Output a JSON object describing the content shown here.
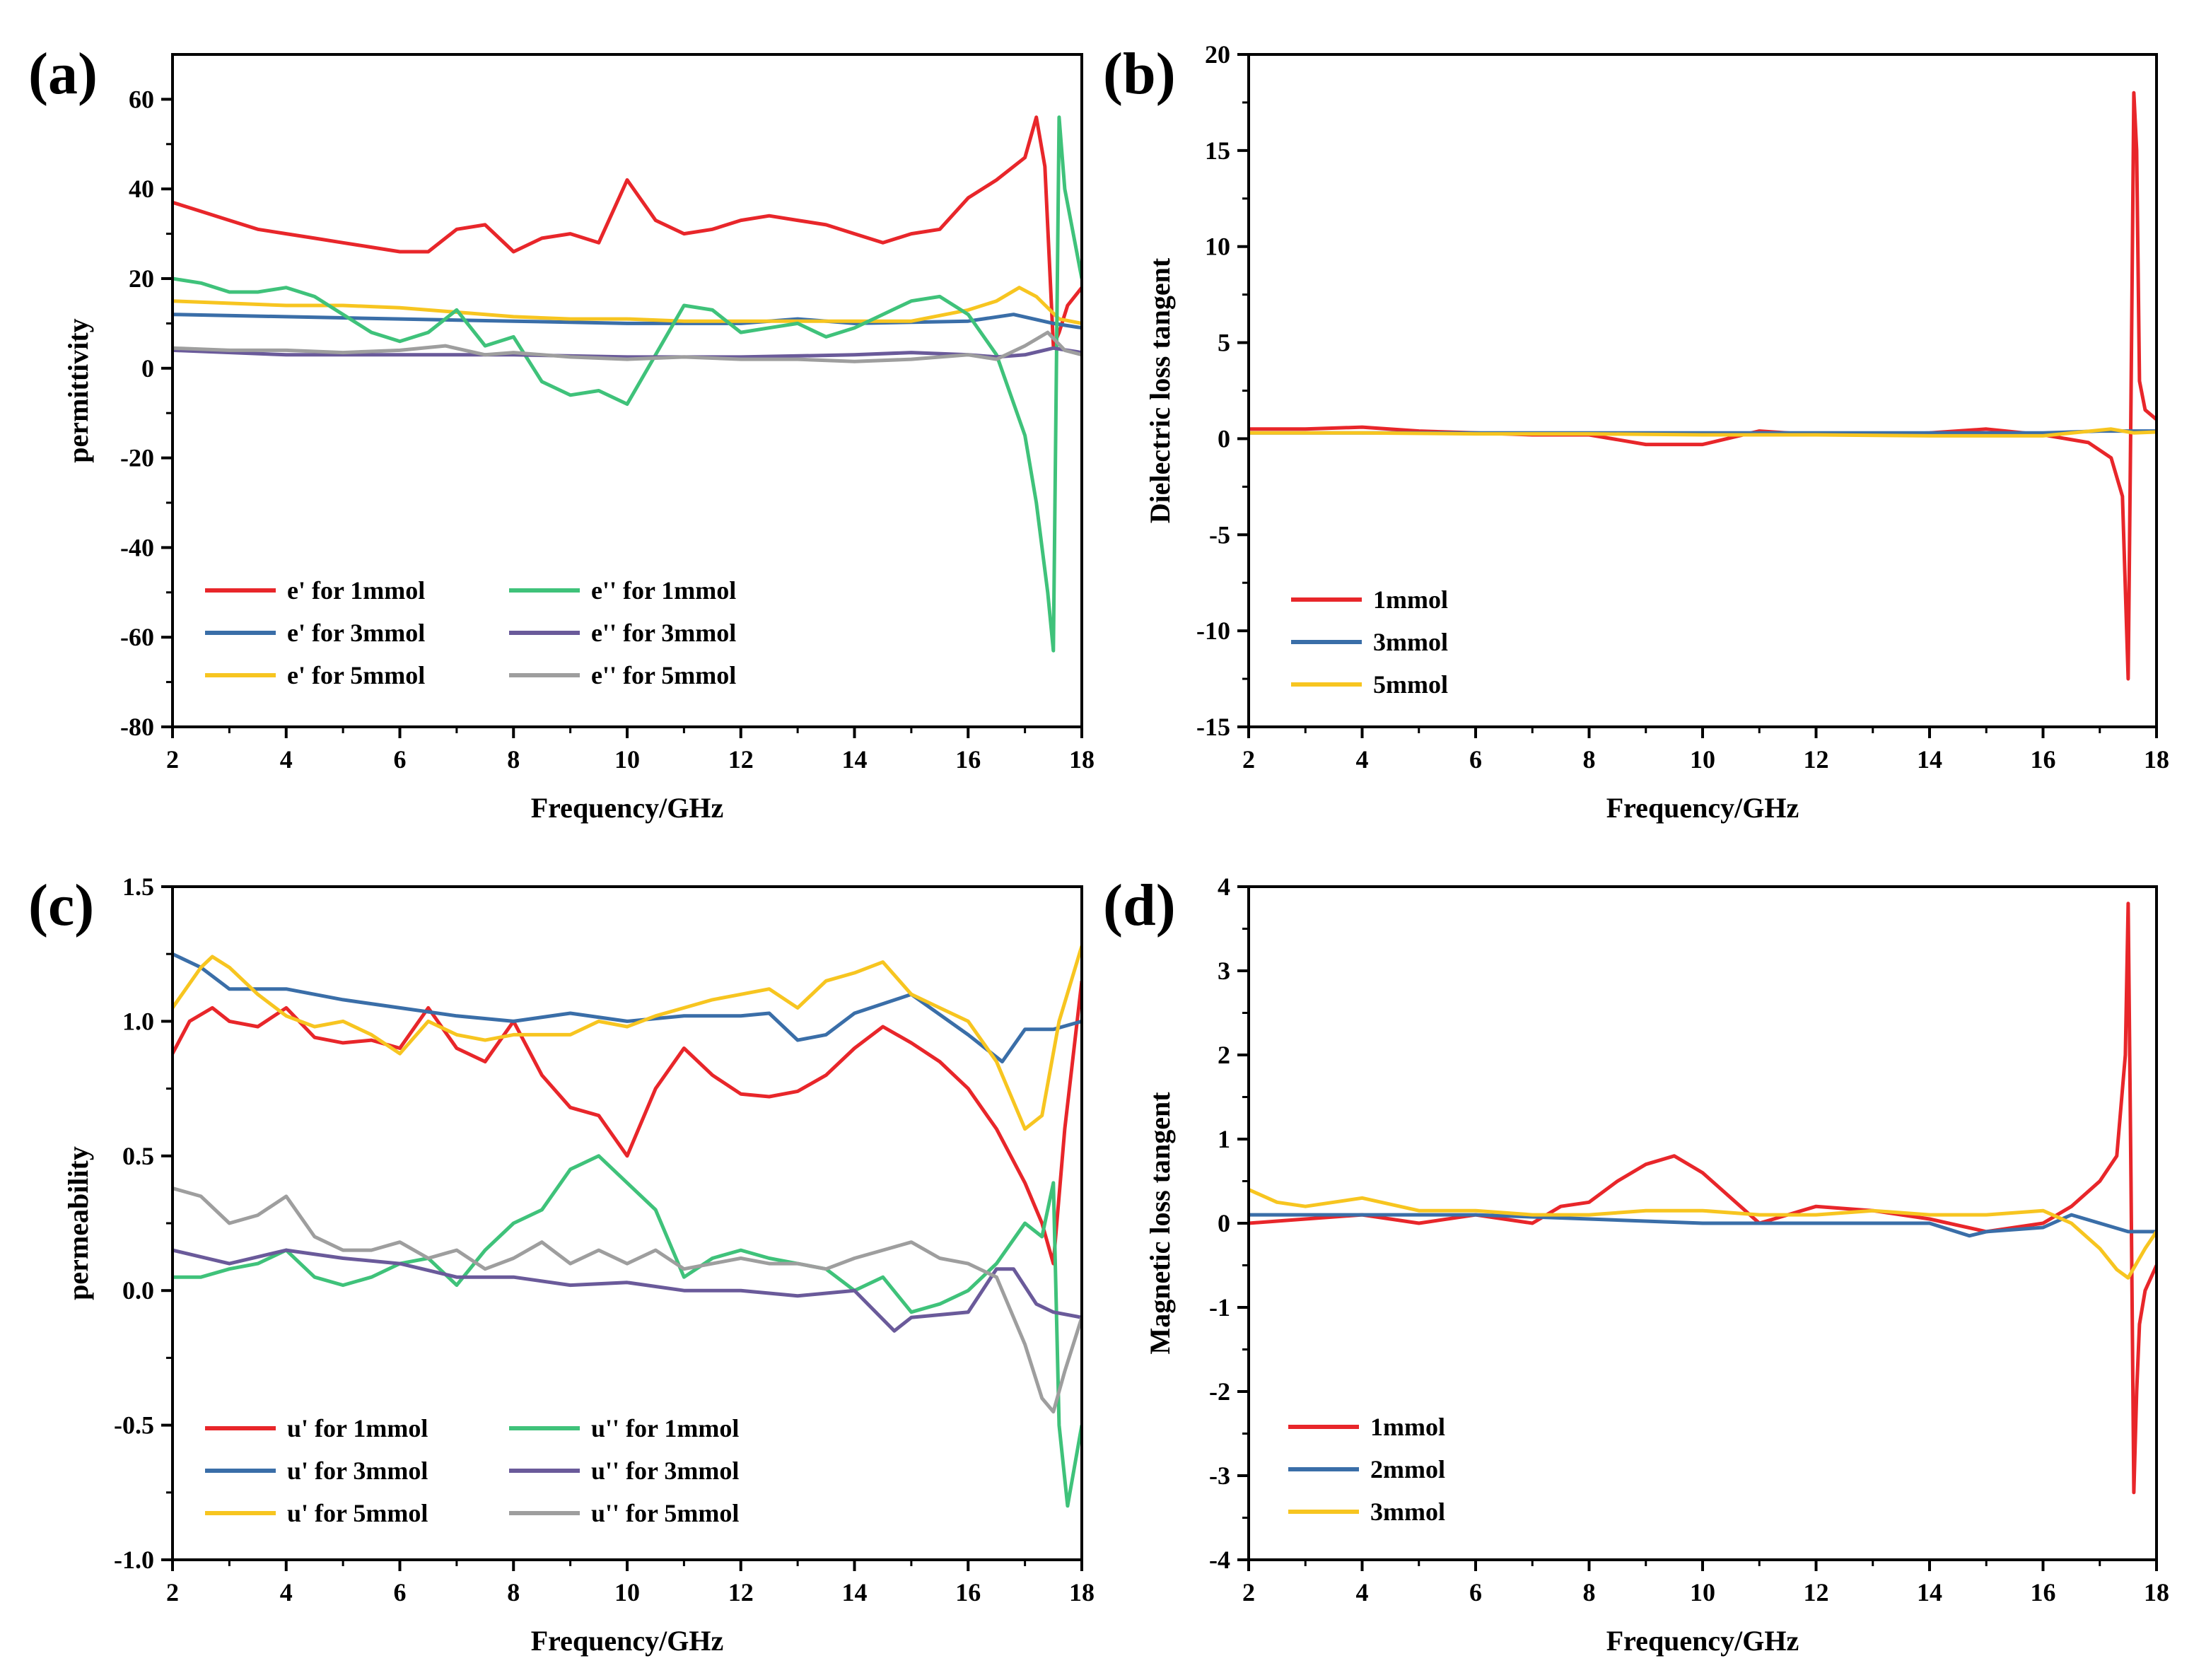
{
  "figure": {
    "description_free": true
  },
  "chart_data": [
    {
      "panel": "(a)",
      "type": "line",
      "xlabel": "Frequency/GHz",
      "ylabel": "permittivity",
      "xlim": [
        2,
        18
      ],
      "ylim": [
        -80,
        70
      ],
      "xticks": [
        2,
        4,
        6,
        8,
        10,
        12,
        14,
        16,
        18
      ],
      "yticks": [
        -80,
        -60,
        -40,
        -20,
        0,
        20,
        40,
        60
      ],
      "legend_position": "bottom-left",
      "legend_columns": 2,
      "series": [
        {
          "name": "e'  for 1mmol",
          "color": "#e8262a",
          "x": [
            2,
            2.5,
            3,
            3.5,
            4,
            4.5,
            5,
            5.5,
            6,
            6.5,
            7,
            7.5,
            8,
            8.5,
            9,
            9.5,
            10,
            10.5,
            11,
            11.5,
            12,
            12.5,
            13,
            13.5,
            14,
            14.5,
            15,
            15.5,
            16,
            16.5,
            17,
            17.2,
            17.35,
            17.5,
            17.6,
            17.75,
            18
          ],
          "y": [
            37,
            35,
            33,
            31,
            30,
            29,
            28,
            27,
            26,
            26,
            31,
            32,
            26,
            29,
            30,
            28,
            42,
            33,
            30,
            31,
            33,
            34,
            33,
            32,
            30,
            28,
            30,
            31,
            38,
            42,
            47,
            56,
            45,
            5,
            8,
            14,
            18
          ]
        },
        {
          "name": "e'  for 3mmol",
          "color": "#3a6ea8",
          "x": [
            2,
            4,
            6,
            8,
            10,
            12,
            13,
            14,
            16,
            16.8,
            17.5,
            18
          ],
          "y": [
            12,
            11.5,
            11,
            10.5,
            10,
            10,
            11,
            10,
            10.5,
            12,
            10,
            9
          ]
        },
        {
          "name": "e'  for 5mmol",
          "color": "#f7c520",
          "x": [
            2,
            3,
            4,
            5,
            6,
            7,
            8,
            9,
            10,
            11,
            12,
            13,
            14,
            15,
            16,
            16.5,
            16.9,
            17.2,
            17.6,
            18
          ],
          "y": [
            15,
            14.5,
            14,
            14,
            13.5,
            12.5,
            11.5,
            11,
            11,
            10.5,
            10.5,
            10.5,
            10.5,
            10.5,
            13,
            15,
            18,
            16,
            11,
            10
          ]
        },
        {
          "name": "e'' for 1mmol",
          "color": "#3fc27a",
          "x": [
            2,
            2.5,
            3,
            3.5,
            4,
            4.5,
            5,
            5.5,
            6,
            6.5,
            7,
            7.5,
            8,
            8.5,
            9,
            9.5,
            10,
            10.5,
            11,
            11.5,
            12,
            12.5,
            13,
            13.5,
            14,
            14.5,
            15,
            15.5,
            16,
            16.5,
            17,
            17.2,
            17.4,
            17.5,
            17.6,
            17.7,
            18
          ],
          "y": [
            20,
            19,
            17,
            17,
            18,
            16,
            12,
            8,
            6,
            8,
            13,
            5,
            7,
            -3,
            -6,
            -5,
            -8,
            3,
            14,
            13,
            8,
            9,
            10,
            7,
            9,
            12,
            15,
            16,
            12,
            3,
            -15,
            -30,
            -50,
            -63,
            56,
            40,
            20
          ]
        },
        {
          "name": "e'' for 3mmol",
          "color": "#6a5a9a",
          "x": [
            2,
            4,
            6,
            8,
            10,
            12,
            14,
            15,
            16,
            16.5,
            17,
            17.5,
            18
          ],
          "y": [
            4,
            3,
            3,
            3,
            2.5,
            2.5,
            3,
            3.5,
            3,
            2.5,
            3,
            4.5,
            3.5
          ]
        },
        {
          "name": "e'' for 5mmol",
          "color": "#9e9e9e",
          "x": [
            2,
            3,
            4,
            5,
            6,
            6.8,
            7.5,
            8,
            9,
            10,
            11,
            12,
            13,
            14,
            15,
            16,
            16.5,
            17,
            17.4,
            17.7,
            18
          ],
          "y": [
            4.5,
            4,
            4,
            3.5,
            4,
            5,
            3,
            3.5,
            2.5,
            2,
            2.5,
            2,
            2,
            1.5,
            2,
            3,
            2,
            5,
            8,
            4,
            3
          ]
        }
      ]
    },
    {
      "panel": "(b)",
      "type": "line",
      "xlabel": "Frequency/GHz",
      "ylabel": "Dielectric loss tangent",
      "xlim": [
        2,
        18
      ],
      "ylim": [
        -15,
        20
      ],
      "xticks": [
        2,
        4,
        6,
        8,
        10,
        12,
        14,
        16,
        18
      ],
      "yticks": [
        -15,
        -10,
        -5,
        0,
        5,
        10,
        15,
        20
      ],
      "legend_position": "bottom-left",
      "legend_columns": 1,
      "series": [
        {
          "name": "1mmol",
          "color": "#e8262a",
          "x": [
            2,
            3,
            4,
            5,
            6,
            7,
            8,
            9,
            10,
            11,
            12,
            13,
            14,
            15,
            16,
            16.8,
            17.2,
            17.4,
            17.5,
            17.55,
            17.6,
            17.65,
            17.7,
            17.8,
            18
          ],
          "y": [
            0.5,
            0.5,
            0.6,
            0.4,
            0.3,
            0.2,
            0.2,
            -0.3,
            -0.3,
            0.4,
            0.2,
            0.2,
            0.3,
            0.5,
            0.2,
            -0.2,
            -1,
            -3,
            -12.5,
            2,
            18,
            15,
            3,
            1.5,
            1
          ]
        },
        {
          "name": "3mmol",
          "color": "#3a6ea8",
          "x": [
            2,
            6,
            10,
            14,
            16,
            17,
            18
          ],
          "y": [
            0.3,
            0.3,
            0.3,
            0.3,
            0.3,
            0.4,
            0.4
          ]
        },
        {
          "name": "5mmol",
          "color": "#f7c520",
          "x": [
            2,
            4,
            6,
            8,
            10,
            12,
            14,
            16,
            17.2,
            17.6,
            18
          ],
          "y": [
            0.3,
            0.3,
            0.25,
            0.25,
            0.2,
            0.2,
            0.15,
            0.15,
            0.5,
            0.3,
            0.35
          ]
        }
      ]
    },
    {
      "panel": "(c)",
      "type": "line",
      "xlabel": "Frequency/GHz",
      "ylabel": "permeability",
      "xlim": [
        2,
        18
      ],
      "ylim": [
        -1.0,
        1.5
      ],
      "xticks": [
        2,
        4,
        6,
        8,
        10,
        12,
        14,
        16,
        18
      ],
      "yticks": [
        -1.0,
        -0.5,
        0.0,
        0.5,
        1.0,
        1.5
      ],
      "legend_position": "bottom-left",
      "legend_columns": 2,
      "series": [
        {
          "name": "u'  for 1mmol",
          "color": "#e8262a",
          "x": [
            2,
            2.3,
            2.7,
            3,
            3.5,
            4,
            4.5,
            5,
            5.5,
            6,
            6.5,
            7,
            7.5,
            8,
            8.5,
            9,
            9.5,
            10,
            10.5,
            11,
            11.5,
            12,
            12.5,
            13,
            13.5,
            14,
            14.5,
            15,
            15.5,
            16,
            16.5,
            17,
            17.3,
            17.5,
            17.7,
            18
          ],
          "y": [
            0.88,
            1.0,
            1.05,
            1.0,
            0.98,
            1.05,
            0.94,
            0.92,
            0.93,
            0.9,
            1.05,
            0.9,
            0.85,
            1.0,
            0.8,
            0.68,
            0.65,
            0.5,
            0.75,
            0.9,
            0.8,
            0.73,
            0.72,
            0.74,
            0.8,
            0.9,
            0.98,
            0.92,
            0.85,
            0.75,
            0.6,
            0.4,
            0.25,
            0.1,
            0.6,
            1.15
          ]
        },
        {
          "name": "u'  for 3mmol",
          "color": "#3a6ea8",
          "x": [
            2,
            2.5,
            3,
            4,
            5,
            6,
            7,
            8,
            9,
            10,
            11,
            12,
            12.5,
            13,
            13.5,
            14,
            15,
            16,
            16.6,
            17,
            17.5,
            18
          ],
          "y": [
            1.25,
            1.2,
            1.12,
            1.12,
            1.08,
            1.05,
            1.02,
            1.0,
            1.03,
            1.0,
            1.02,
            1.02,
            1.03,
            0.93,
            0.95,
            1.03,
            1.1,
            0.95,
            0.85,
            0.97,
            0.97,
            1.0
          ]
        },
        {
          "name": "u'  for 5mmol",
          "color": "#f7c520",
          "x": [
            2,
            2.5,
            2.7,
            3,
            3.5,
            4,
            4.5,
            5,
            5.5,
            6,
            6.5,
            7,
            7.5,
            8,
            8.5,
            9,
            9.5,
            10,
            10.5,
            11,
            11.5,
            12,
            12.5,
            13,
            13.5,
            14,
            14.5,
            15,
            15.5,
            16,
            16.5,
            17,
            17.3,
            17.6,
            18
          ],
          "y": [
            1.05,
            1.2,
            1.24,
            1.2,
            1.1,
            1.02,
            0.98,
            1.0,
            0.95,
            0.88,
            1.0,
            0.95,
            0.93,
            0.95,
            0.95,
            0.95,
            1.0,
            0.98,
            1.02,
            1.05,
            1.08,
            1.1,
            1.12,
            1.05,
            1.15,
            1.18,
            1.22,
            1.1,
            1.05,
            1.0,
            0.85,
            0.6,
            0.65,
            1.0,
            1.28
          ]
        },
        {
          "name": "u'' for 1mmol",
          "color": "#3fc27a",
          "x": [
            2,
            2.5,
            3,
            3.5,
            4,
            4.5,
            5,
            5.5,
            6,
            6.5,
            7,
            7.5,
            8,
            8.5,
            9,
            9.5,
            10,
            10.5,
            11,
            11.5,
            12,
            12.5,
            13,
            13.5,
            14,
            14.5,
            15,
            15.5,
            16,
            16.5,
            17,
            17.3,
            17.5,
            17.6,
            17.75,
            18
          ],
          "y": [
            0.05,
            0.05,
            0.08,
            0.1,
            0.15,
            0.05,
            0.02,
            0.05,
            0.1,
            0.12,
            0.02,
            0.15,
            0.25,
            0.3,
            0.45,
            0.5,
            0.4,
            0.3,
            0.05,
            0.12,
            0.15,
            0.12,
            0.1,
            0.08,
            0.0,
            0.05,
            -0.08,
            -0.05,
            0.0,
            0.1,
            0.25,
            0.2,
            0.4,
            -0.5,
            -0.8,
            -0.5
          ]
        },
        {
          "name": "u'' for 3mmol",
          "color": "#6a5a9a",
          "x": [
            2,
            3,
            4,
            5,
            6,
            7,
            8,
            9,
            10,
            11,
            12,
            13,
            14,
            14.7,
            15,
            16,
            16.5,
            16.8,
            17.2,
            17.5,
            18
          ],
          "y": [
            0.15,
            0.1,
            0.15,
            0.12,
            0.1,
            0.05,
            0.05,
            0.02,
            0.03,
            0.0,
            0.0,
            -0.02,
            0.0,
            -0.15,
            -0.1,
            -0.08,
            0.08,
            0.08,
            -0.05,
            -0.08,
            -0.1
          ]
        },
        {
          "name": "u'' for 5mmol",
          "color": "#9e9e9e",
          "x": [
            2,
            2.5,
            3,
            3.5,
            4,
            4.5,
            5,
            5.5,
            6,
            6.5,
            7,
            7.5,
            8,
            8.5,
            9,
            9.5,
            10,
            10.5,
            11,
            11.5,
            12,
            12.5,
            13,
            13.5,
            14,
            14.5,
            15,
            15.5,
            16,
            16.5,
            17,
            17.3,
            17.5,
            17.7,
            18
          ],
          "y": [
            0.38,
            0.35,
            0.25,
            0.28,
            0.35,
            0.2,
            0.15,
            0.15,
            0.18,
            0.12,
            0.15,
            0.08,
            0.12,
            0.18,
            0.1,
            0.15,
            0.1,
            0.15,
            0.08,
            0.1,
            0.12,
            0.1,
            0.1,
            0.08,
            0.12,
            0.15,
            0.18,
            0.12,
            0.1,
            0.05,
            -0.2,
            -0.4,
            -0.45,
            -0.3,
            -0.1
          ]
        }
      ]
    },
    {
      "panel": "(d)",
      "type": "line",
      "xlabel": "Frequency/GHz",
      "ylabel": "Magnetic loss tangent",
      "xlim": [
        2,
        18
      ],
      "ylim": [
        -4,
        4
      ],
      "xticks": [
        2,
        4,
        6,
        8,
        10,
        12,
        14,
        16,
        18
      ],
      "yticks": [
        -4,
        -3,
        -2,
        -1,
        0,
        1,
        2,
        3,
        4
      ],
      "legend_position": "bottom-left",
      "legend_columns": 1,
      "series": [
        {
          "name": "1mmol",
          "color": "#e8262a",
          "x": [
            2,
            3,
            4,
            5,
            6,
            7,
            7.5,
            8,
            8.5,
            9,
            9.5,
            10,
            10.5,
            11,
            11.5,
            12,
            13,
            14,
            15,
            16,
            16.5,
            17,
            17.3,
            17.45,
            17.5,
            17.55,
            17.6,
            17.65,
            17.7,
            17.8,
            18
          ],
          "y": [
            0.0,
            0.05,
            0.1,
            0.0,
            0.1,
            0.0,
            0.2,
            0.25,
            0.5,
            0.7,
            0.8,
            0.6,
            0.3,
            0.0,
            0.1,
            0.2,
            0.15,
            0.05,
            -0.1,
            0.0,
            0.2,
            0.5,
            0.8,
            2.0,
            3.8,
            0.5,
            -3.2,
            -2.0,
            -1.2,
            -0.8,
            -0.5
          ]
        },
        {
          "name": "2mmol",
          "color": "#3a6ea8",
          "x": [
            2,
            4,
            6,
            8,
            10,
            12,
            14,
            14.7,
            15,
            16,
            16.5,
            17,
            17.5,
            18
          ],
          "y": [
            0.1,
            0.1,
            0.1,
            0.05,
            0.0,
            0.0,
            0.0,
            -0.15,
            -0.1,
            -0.05,
            0.1,
            0.0,
            -0.1,
            -0.1
          ]
        },
        {
          "name": "3mmol",
          "color": "#f7c520",
          "x": [
            2,
            2.5,
            3,
            4,
            5,
            6,
            7,
            8,
            9,
            10,
            11,
            12,
            13,
            14,
            15,
            16,
            16.5,
            17,
            17.3,
            17.5,
            17.8,
            18
          ],
          "y": [
            0.4,
            0.25,
            0.2,
            0.3,
            0.15,
            0.15,
            0.1,
            0.1,
            0.15,
            0.15,
            0.1,
            0.1,
            0.15,
            0.1,
            0.1,
            0.15,
            0.0,
            -0.3,
            -0.55,
            -0.65,
            -0.3,
            -0.1
          ]
        }
      ]
    }
  ]
}
